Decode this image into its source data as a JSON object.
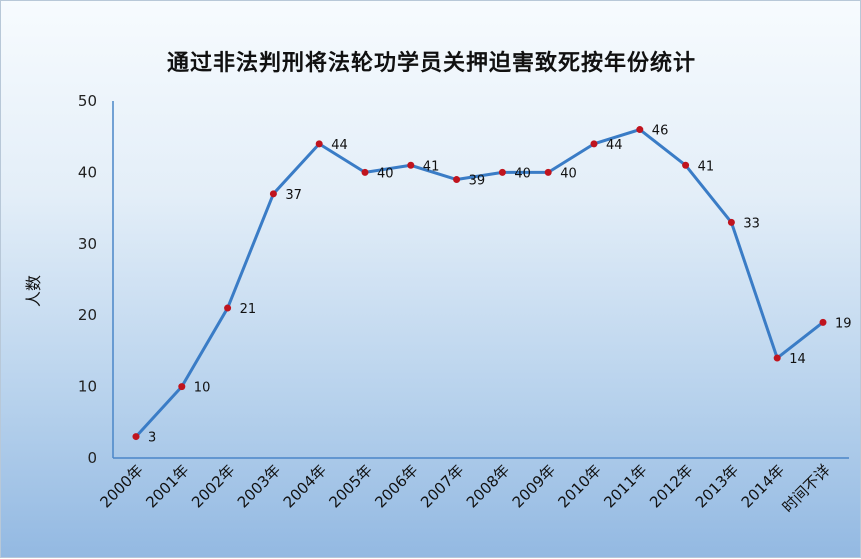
{
  "chart_data": {
    "type": "line",
    "title": "通过非法判刑将法轮功学员关押迫害致死按年份统计",
    "ylabel": "人数",
    "xlabel": "",
    "ylim": [
      0,
      50
    ],
    "yticks": [
      0,
      10,
      20,
      30,
      40,
      50
    ],
    "categories": [
      "2000年",
      "2001年",
      "2002年",
      "2003年",
      "2004年",
      "2005年",
      "2006年",
      "2007年",
      "2008年",
      "2009年",
      "2010年",
      "2011年",
      "2012年",
      "2013年",
      "2014年",
      "时间不详"
    ],
    "series": [
      {
        "values": [
          3,
          10,
          21,
          37,
          44,
          40,
          41,
          39,
          40,
          40,
          44,
          46,
          41,
          33,
          14,
          19
        ]
      }
    ],
    "grid": false,
    "legend": "none",
    "colors": {
      "line": "#3a7cc6",
      "marker": "#c0141e",
      "axis": "#4a86c8"
    }
  }
}
